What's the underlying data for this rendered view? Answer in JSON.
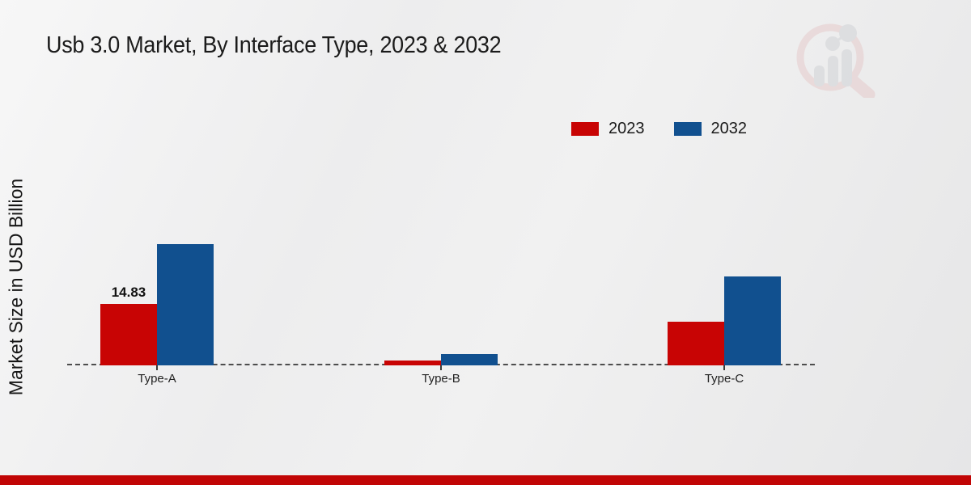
{
  "title": "Usb 3.0 Market, By Interface Type, 2023 & 2032",
  "y_axis_label": "Market Size in USD Billion",
  "legend": [
    {
      "label": "2023",
      "color": "#c80404"
    },
    {
      "label": "2032",
      "color": "#11508f"
    }
  ],
  "colors": {
    "series_2023": "#c80404",
    "series_2032": "#11508f",
    "baseline_dash": "#4d4d4d",
    "footer_stripe": "#c10505",
    "title_text": "#1b1b1b"
  },
  "watermark_icon": "magnifier-bar-chart-logo",
  "chart_data": {
    "type": "bar",
    "title": "Usb 3.0 Market, By Interface Type, 2023 & 2032",
    "categories": [
      "Type-A",
      "Type-B",
      "Type-C"
    ],
    "series": [
      {
        "name": "2023",
        "color": "#c80404",
        "values": [
          14.83,
          1.2,
          10.5
        ]
      },
      {
        "name": "2032",
        "color": "#11508f",
        "values": [
          29.3,
          2.7,
          21.5
        ]
      }
    ],
    "point_labels": [
      {
        "series_index": 0,
        "category_index": 0,
        "text": "14.83"
      }
    ],
    "xlabel": "",
    "ylabel": "Market Size in USD Billion",
    "ylim": [
      0,
      32
    ],
    "grid": false,
    "baseline_style": "dashed",
    "legend_position": "top-right"
  }
}
